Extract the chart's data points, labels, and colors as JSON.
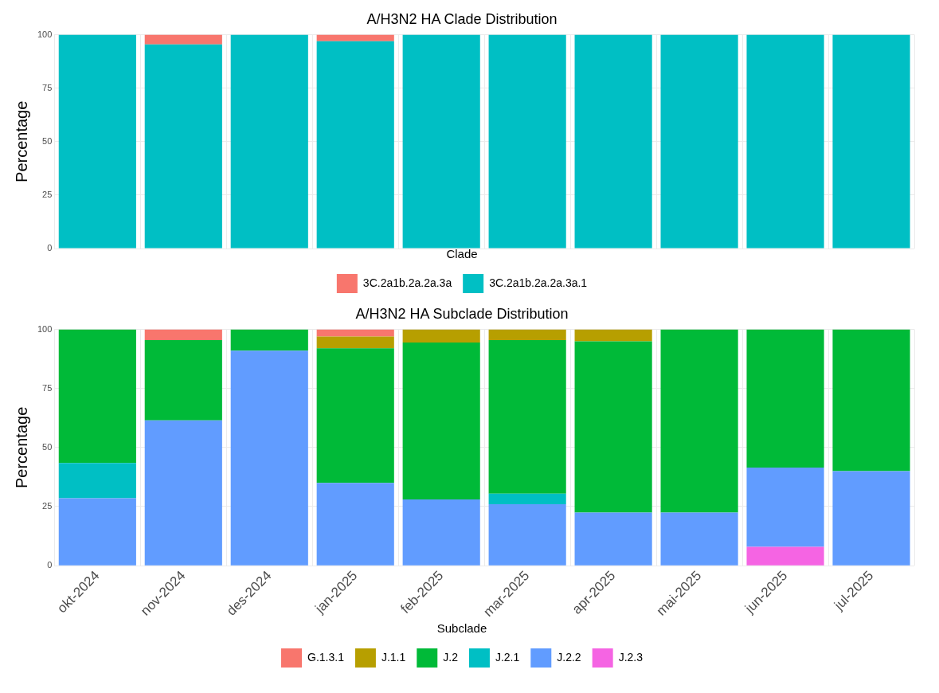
{
  "chart_data": [
    {
      "type": "bar",
      "title": "A/H3N2 HA Clade Distribution",
      "ylabel": "Percentage",
      "legend_title": "Clade",
      "stacked": true,
      "categories": [
        null,
        null,
        null,
        null,
        null,
        null,
        null,
        null,
        null,
        null
      ],
      "ylim": [
        0,
        100
      ],
      "yticks": [
        0,
        25,
        50,
        75,
        100
      ],
      "grid": true,
      "legend": "bottom",
      "tick_labels": "y",
      "series": [
        {
          "name": "3C.2a1b.2a.2a.3a.1",
          "color": "#00bfc4",
          "values": [
            100,
            95.5,
            100,
            97,
            100,
            100,
            100,
            100,
            100,
            100
          ]
        },
        {
          "name": "3C.2a1b.2a.2a.3a",
          "color": "#f8766d",
          "values": [
            null,
            4.5,
            null,
            3,
            null,
            null,
            null,
            null,
            null,
            null
          ]
        }
      ]
    },
    {
      "type": "bar",
      "title": "A/H3N2 HA Subclade Distribution",
      "ylabel": "Percentage",
      "legend_title": "Subclade",
      "stacked": true,
      "categories": [
        "okt-2024",
        "nov-2024",
        "des-2024",
        "jan-2025",
        "feb-2025",
        "mar-2025",
        "apr-2025",
        "mai-2025",
        "jun-2025",
        "jul-2025"
      ],
      "ylim": [
        0,
        100
      ],
      "yticks": [
        0,
        25,
        50,
        75,
        100
      ],
      "grid": true,
      "legend": "bottom",
      "series": [
        {
          "name": "J.2.3",
          "color": "#f564e3",
          "values": [
            null,
            null,
            null,
            null,
            null,
            null,
            null,
            null,
            8,
            null
          ]
        },
        {
          "name": "J.2.2",
          "color": "#619cff",
          "values": [
            28.5,
            61.5,
            91,
            35,
            28,
            26,
            22.5,
            22.5,
            33.5,
            40
          ]
        },
        {
          "name": "J.2.1",
          "color": "#00bfc4",
          "values": [
            15,
            null,
            null,
            null,
            null,
            4.5,
            null,
            null,
            null,
            null
          ]
        },
        {
          "name": "J.2",
          "color": "#00ba38",
          "values": [
            56.5,
            34,
            9,
            57,
            66.5,
            65,
            72.5,
            77.5,
            58.5,
            60
          ]
        },
        {
          "name": "J.1.1",
          "color": "#b79f00",
          "values": [
            null,
            null,
            null,
            5,
            5.5,
            4.5,
            5,
            null,
            null,
            null
          ]
        },
        {
          "name": "G.1.3.1",
          "color": "#f8766d",
          "values": [
            null,
            4.5,
            null,
            3,
            null,
            null,
            null,
            null,
            null,
            null
          ]
        }
      ]
    }
  ]
}
